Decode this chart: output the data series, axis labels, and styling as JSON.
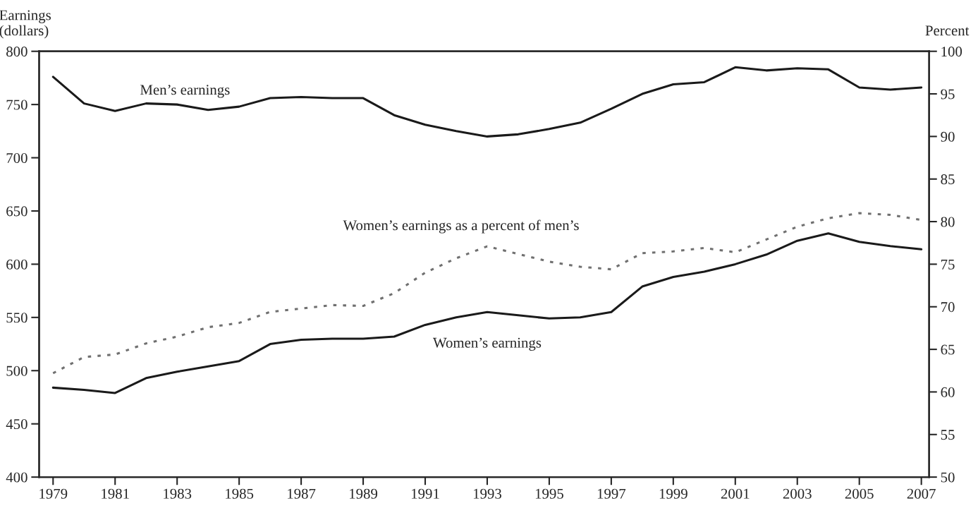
{
  "chart_data": {
    "type": "line",
    "ylabel": "Earnings\n(dollars)",
    "y2label": "Percent",
    "x": [
      1979,
      1980,
      1981,
      1982,
      1983,
      1984,
      1985,
      1986,
      1987,
      1988,
      1989,
      1990,
      1991,
      1992,
      1993,
      1994,
      1995,
      1996,
      1997,
      1998,
      1999,
      2000,
      2001,
      2002,
      2003,
      2004,
      2005,
      2006,
      2007
    ],
    "series": [
      {
        "name": "Men’s earnings",
        "color": "#1a1a1a",
        "line_style": "solid",
        "values": [
          776,
          751,
          744,
          751,
          750,
          745,
          748,
          756,
          757,
          756,
          756,
          740,
          731,
          725,
          720,
          722,
          727,
          733,
          746,
          760,
          769,
          771,
          785,
          782,
          784,
          783,
          766,
          764,
          766
        ]
      },
      {
        "name": "Women’s earnings",
        "color": "#1a1a1a",
        "line_style": "solid",
        "values": [
          484,
          482,
          479,
          493,
          499,
          504,
          509,
          525,
          529,
          530,
          530,
          532,
          543,
          550,
          555,
          552,
          549,
          550,
          555,
          579,
          588,
          593,
          600,
          609,
          622,
          629,
          621,
          617,
          614
        ]
      },
      {
        "name": "Women’s earnings as a percent of men’s",
        "color": "#707070",
        "line_style": "dotted",
        "axis": "y2",
        "values": [
          62.2,
          64.1,
          64.4,
          65.7,
          66.5,
          67.6,
          68.1,
          69.4,
          69.8,
          70.2,
          70.1,
          71.6,
          74.0,
          75.7,
          77.1,
          76.2,
          75.3,
          74.7,
          74.4,
          76.3,
          76.5,
          76.9,
          76.4,
          77.9,
          79.4,
          80.4,
          81.0,
          80.8,
          80.2
        ]
      }
    ],
    "xlim": [
      1978.55,
      2007.25
    ],
    "xticks": [
      1979,
      1981,
      1983,
      1985,
      1987,
      1989,
      1991,
      1993,
      1995,
      1997,
      1999,
      2001,
      2003,
      2005,
      2007
    ],
    "ylim": [
      400,
      800
    ],
    "yticks": [
      400,
      450,
      500,
      550,
      600,
      650,
      700,
      750,
      800
    ],
    "y2lim": [
      50,
      100
    ],
    "y2ticks": [
      50,
      55,
      60,
      65,
      70,
      75,
      80,
      85,
      90,
      95,
      100
    ],
    "grid": false,
    "legend": false,
    "marker": "none"
  }
}
